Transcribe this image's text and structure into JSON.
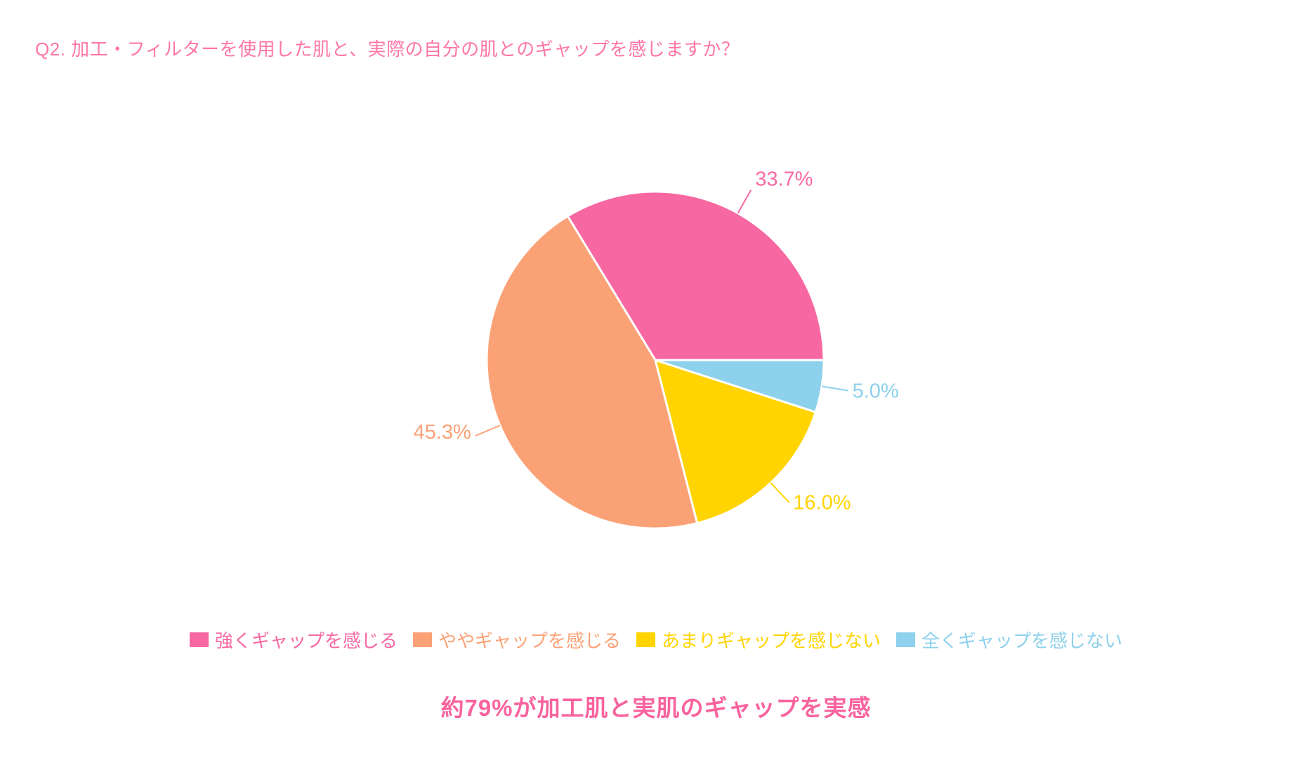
{
  "page": {
    "title": "Q2. 加工・フィルターを使用した肌と、実際の自分の肌とのギャップを感じますか？",
    "caption": "約79%が加工肌と実肌のギャップを実感",
    "colors": {
      "title_pink": "#FF76A8",
      "caption_pink": "#F8639E",
      "background": "#FFFFFF"
    }
  },
  "chart_data": {
    "type": "pie",
    "title": "",
    "start_angle_deg": 0,
    "direction": "counterclockwise",
    "legend_position": "bottom",
    "slices": [
      {
        "label": "強くギャップを感じる",
        "value": 33.7,
        "display": "33.7%",
        "color": "#F768A2"
      },
      {
        "label": "ややギャップを感じる",
        "value": 45.3,
        "display": "45.3%",
        "color": "#FBA176"
      },
      {
        "label": "あまりギャップを感じない",
        "value": 16.0,
        "display": "16.0%",
        "color": "#FFD400"
      },
      {
        "label": "全くギャップを感じない",
        "value": 5.0,
        "display": "5.0%",
        "color": "#8DD1EC"
      }
    ]
  }
}
